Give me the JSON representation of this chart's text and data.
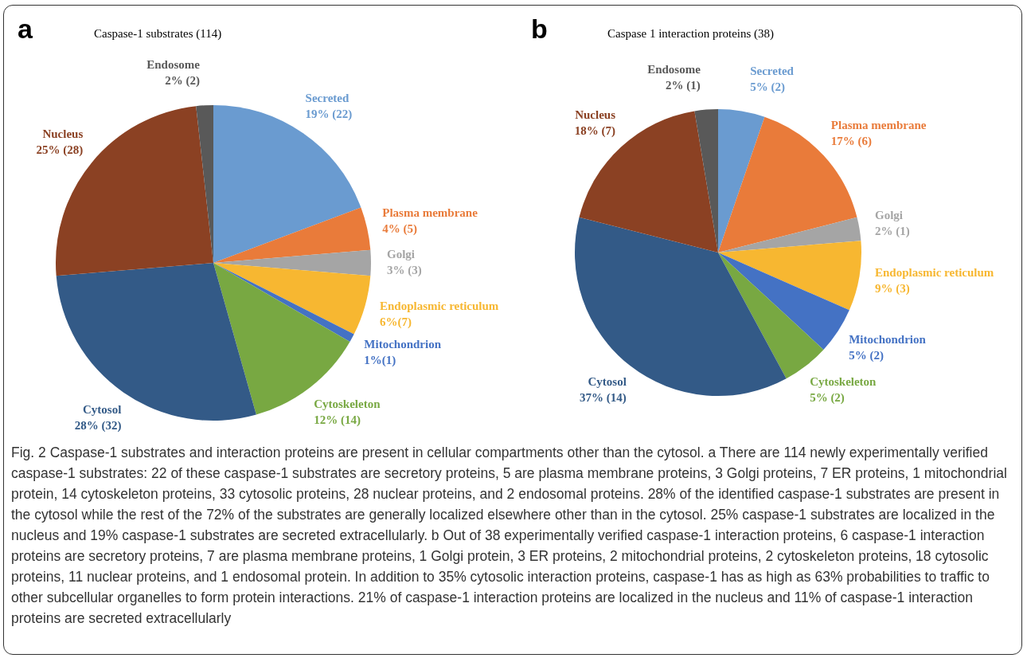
{
  "chart_data": [
    {
      "type": "pie",
      "title": "Caspase-1 substrates (114)",
      "annotations": [
        "a"
      ],
      "categories": [
        "Secreted",
        "Plasma membrane",
        "Golgi",
        "Endoplasmic reticulum",
        "Mitochondrion",
        "Cytoskeleton",
        "Cytosol",
        "Nucleus",
        "Endosome"
      ],
      "values": [
        22,
        5,
        3,
        7,
        1,
        14,
        32,
        28,
        2
      ],
      "value_labels": [
        "19% (22)",
        "4% (5)",
        "3% (3)",
        "6%(7)",
        "1%(1)",
        "12% (14)",
        "28% (32)",
        "25% (28)",
        "2% (2)"
      ],
      "colors": [
        "#6a9bd0",
        "#e97b3a",
        "#a5a5a5",
        "#f7b731",
        "#4472c4",
        "#78a842",
        "#335a87",
        "#8b4123",
        "#595959"
      ]
    },
    {
      "type": "pie",
      "title": "Caspase 1 interaction proteins (38)",
      "annotations": [
        "b"
      ],
      "categories": [
        "Secreted",
        "Plasma membrane",
        "Golgi",
        "Endoplasmic reticulum",
        "Mitochondrion",
        "Cytoskeleton",
        "Cytosol",
        "Nucleus",
        "Endosome"
      ],
      "values": [
        2,
        6,
        1,
        3,
        2,
        2,
        14,
        7,
        1
      ],
      "value_labels": [
        "5% (2)",
        "17% (6)",
        "2% (1)",
        "9% (3)",
        "5% (2)",
        "5% (2)",
        "37% (14)",
        "18% (7)",
        "2% (1)"
      ],
      "colors": [
        "#6a9bd0",
        "#e97b3a",
        "#a5a5a5",
        "#f7b731",
        "#4472c4",
        "#78a842",
        "#335a87",
        "#8b4123",
        "#595959"
      ]
    },
    {
      "type": "other",
      "annotations": [
        "Fig. 2 Caspase-1 substrates and interaction proteins are present in cellular compartments other than the cytosol. a There are 114 newly experimentally verified caspase-1 substrates: 22 of these caspase-1 substrates are secretory proteins, 5 are plasma membrane proteins, 3 Golgi proteins, 7 ER proteins, 1 mitochondrial protein, 14 cytoskeleton proteins, 33 cytosolic proteins, 28 nuclear proteins, and 2 endosomal proteins. 28% of the identified caspase-1 substrates are present in the cytosol while the rest of the 72% of the substrates are generally localized elsewhere other than in the cytosol. 25% caspase-1 substrates are localized in the nucleus and 19% caspase-1 substrates are secreted extracellularly. b Out of 38 experimentally verified caspase-1 interaction proteins, 6 caspase-1 interaction proteins are secretory proteins, 7 are plasma membrane proteins, 1 Golgi protein, 3 ER proteins, 2 mitochondrial proteins, 2 cytoskeleton proteins, 18 cytosolic proteins, 11 nuclear proteins, and 1 endosomal protein. In addition to 35% cytosolic interaction proteins, caspase-1 has as high as 63% probabilities to traffic to other subcellular organelles to form protein interactions. 21% of caspase-1 interaction proteins are localized in the nucleus and 11% of caspase-1 interaction proteins are secreted extracellularly"
      ]
    }
  ]
}
